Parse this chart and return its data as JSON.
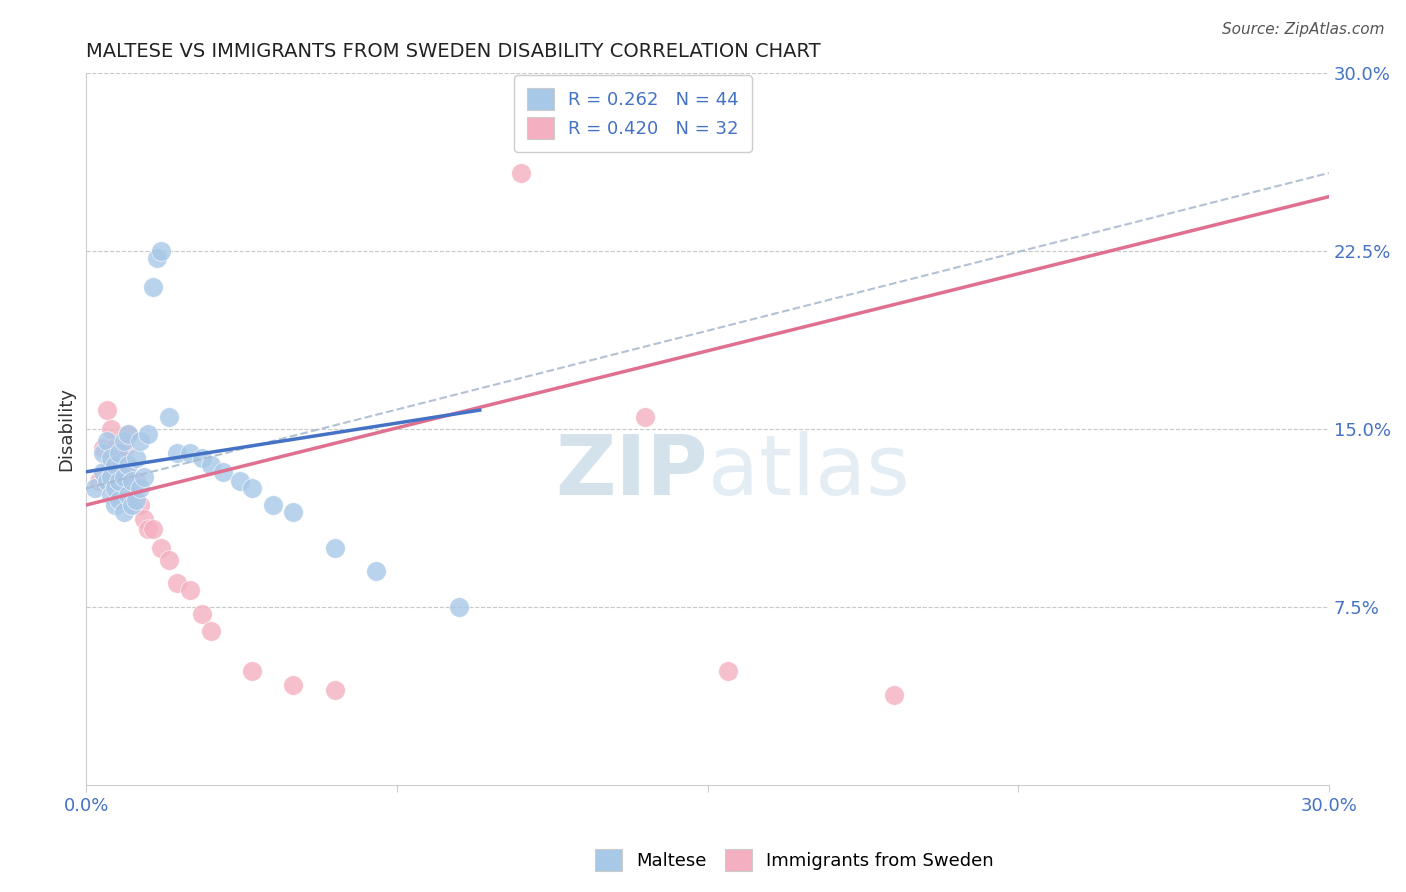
{
  "title": "MALTESE VS IMMIGRANTS FROM SWEDEN DISABILITY CORRELATION CHART",
  "source": "Source: ZipAtlas.com",
  "ylabel": "Disability",
  "xmin": 0.0,
  "xmax": 0.3,
  "ymin": 0.0,
  "ymax": 0.3,
  "x_ticks": [
    0.0,
    0.075,
    0.15,
    0.225,
    0.3
  ],
  "x_tick_labels": [
    "0.0%",
    "",
    "",
    "",
    "30.0%"
  ],
  "y_tick_labels_right": [
    "30.0%",
    "22.5%",
    "15.0%",
    "7.5%",
    ""
  ],
  "y_ticks_right": [
    0.3,
    0.225,
    0.15,
    0.075,
    0.0
  ],
  "legend_r1": "R = 0.262",
  "legend_n1": "N = 44",
  "legend_r2": "R = 0.420",
  "legend_n2": "N = 32",
  "blue_color": "#a8c8e8",
  "pink_color": "#f4afc0",
  "blue_line_color": "#4472c4",
  "pink_line_color": "#e07090",
  "dashed_line_color": "#aabbd0",
  "label_color": "#4472c4",
  "watermark_zip": "ZIP",
  "watermark_atlas": "atlas",
  "maltese_x": [
    0.002,
    0.004,
    0.004,
    0.005,
    0.005,
    0.006,
    0.006,
    0.006,
    0.007,
    0.007,
    0.007,
    0.008,
    0.008,
    0.008,
    0.009,
    0.009,
    0.009,
    0.01,
    0.01,
    0.01,
    0.011,
    0.011,
    0.012,
    0.012,
    0.013,
    0.013,
    0.014,
    0.015,
    0.016,
    0.017,
    0.018,
    0.02,
    0.022,
    0.025,
    0.028,
    0.03,
    0.033,
    0.037,
    0.04,
    0.045,
    0.05,
    0.06,
    0.07,
    0.09
  ],
  "maltese_y": [
    0.125,
    0.132,
    0.14,
    0.128,
    0.145,
    0.122,
    0.13,
    0.138,
    0.118,
    0.125,
    0.135,
    0.12,
    0.128,
    0.14,
    0.115,
    0.13,
    0.145,
    0.122,
    0.135,
    0.148,
    0.118,
    0.128,
    0.12,
    0.138,
    0.125,
    0.145,
    0.13,
    0.148,
    0.21,
    0.222,
    0.225,
    0.155,
    0.14,
    0.14,
    0.138,
    0.135,
    0.132,
    0.128,
    0.125,
    0.118,
    0.115,
    0.1,
    0.09,
    0.075
  ],
  "sweden_x": [
    0.003,
    0.004,
    0.005,
    0.006,
    0.006,
    0.007,
    0.007,
    0.008,
    0.008,
    0.009,
    0.009,
    0.01,
    0.01,
    0.011,
    0.012,
    0.013,
    0.014,
    0.015,
    0.016,
    0.018,
    0.02,
    0.022,
    0.025,
    0.028,
    0.03,
    0.04,
    0.05,
    0.06,
    0.105,
    0.135,
    0.155,
    0.195
  ],
  "sweden_y": [
    0.128,
    0.142,
    0.158,
    0.135,
    0.15,
    0.128,
    0.142,
    0.122,
    0.138,
    0.128,
    0.142,
    0.13,
    0.148,
    0.122,
    0.128,
    0.118,
    0.112,
    0.108,
    0.108,
    0.1,
    0.095,
    0.085,
    0.082,
    0.072,
    0.065,
    0.048,
    0.042,
    0.04,
    0.258,
    0.155,
    0.048,
    0.038
  ],
  "blue_line_x": [
    0.0,
    0.095
  ],
  "blue_line_y": [
    0.132,
    0.158
  ],
  "pink_line_x": [
    0.0,
    0.3
  ],
  "pink_line_y": [
    0.118,
    0.248
  ],
  "dashed_line_x": [
    0.0,
    0.3
  ],
  "dashed_line_y": [
    0.125,
    0.258
  ]
}
